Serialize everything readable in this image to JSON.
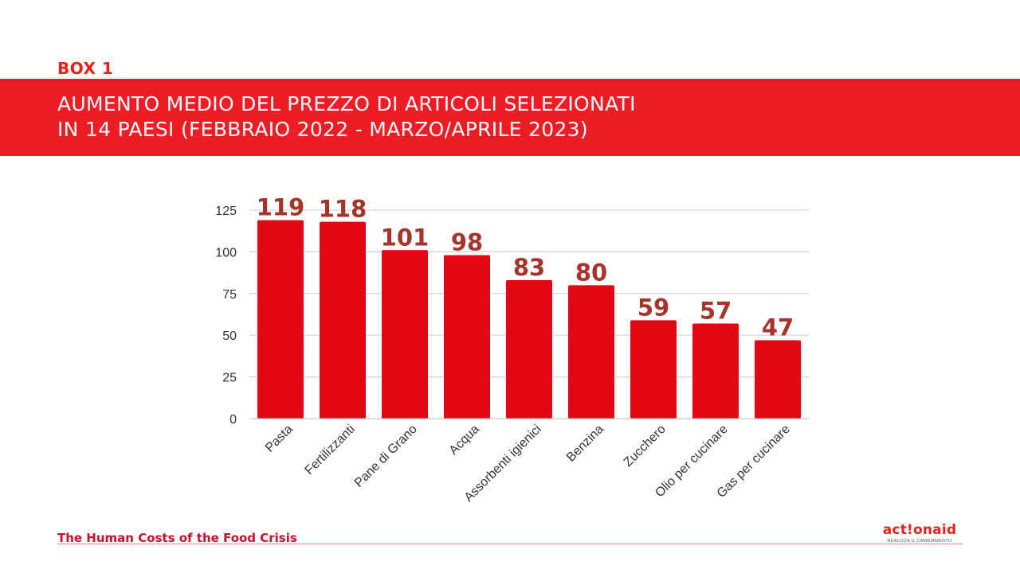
{
  "box_label": "BOX 1",
  "title": {
    "line1": "AUMENTO MEDIO DEL PREZZO DI ARTICOLI SELEZIONATI",
    "line2": "IN 14 PAESI (FEBBRAIO 2022 - MARZO/APRILE 2023)"
  },
  "footer": {
    "title": "The Human Costs of the Food Crisis",
    "logo_text": "act!onaid",
    "logo_tagline": "REALIZZA IL CAMBIAMENTO"
  },
  "colors": {
    "bar": "#e30613",
    "data_label": "#a6342a",
    "title_band": "#ee1c25",
    "gridline": "#cccccc",
    "axis_text": "#333333"
  },
  "chart_data": {
    "type": "bar",
    "categories": [
      "Pasta",
      "Fertilizzanti",
      "Pane di Grano",
      "Acqua",
      "Assorbenti igienici",
      "Benzina",
      "Zucchero",
      "Olio per cucinare",
      "Gas per cucinare"
    ],
    "values": [
      119,
      118,
      101,
      98,
      83,
      80,
      59,
      57,
      47
    ],
    "yticks": [
      0,
      25,
      50,
      75,
      100,
      125
    ],
    "ylim": [
      0,
      125
    ],
    "grid": true,
    "legend": "none",
    "title": "",
    "xlabel": "",
    "ylabel": ""
  }
}
